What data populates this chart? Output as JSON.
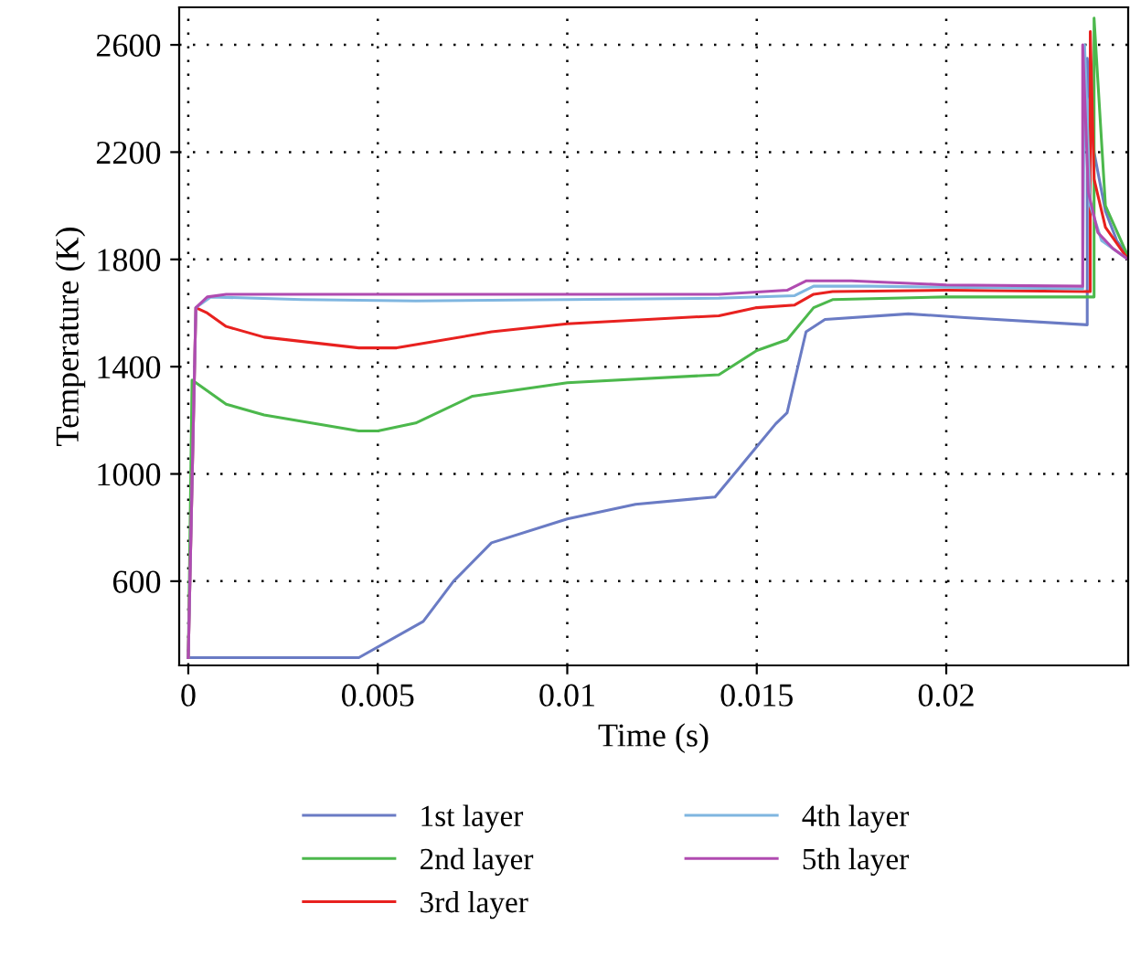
{
  "chart_data": {
    "type": "line",
    "xlabel": "Time (s)",
    "ylabel": "Temperature (K)",
    "xlim": [
      -0.00024,
      0.0248
    ],
    "ylim": [
      286,
      2740
    ],
    "xticks": [
      0,
      0.005,
      0.01,
      0.015,
      0.02
    ],
    "yticks": [
      600,
      1000,
      1400,
      1800,
      2200,
      2600
    ],
    "grid": true,
    "legend": "bottom",
    "marker": "none",
    "line_style": "solid",
    "series": [
      {
        "name": "1st layer",
        "color": "#6a7bc4",
        "x": [
          0,
          0.0001,
          0.0045,
          0.0062,
          0.007,
          0.008,
          0.01,
          0.0118,
          0.0139,
          0.0147,
          0.0155,
          0.0158,
          0.0163,
          0.0168,
          0.019,
          0.0205,
          0.02372,
          0.02372,
          0.0239,
          0.0242,
          0.0245,
          0.0248
        ],
        "values": [
          315,
          315,
          315,
          450,
          600,
          743,
          832,
          887,
          914,
          1050,
          1187,
          1228,
          1530,
          1576,
          1597,
          1583,
          1556,
          2550,
          2200,
          1980,
          1870,
          1810
        ]
      },
      {
        "name": "2nd layer",
        "color": "#4cb84c",
        "x": [
          0,
          0.0001,
          0.001,
          0.002,
          0.0045,
          0.005,
          0.006,
          0.0075,
          0.01,
          0.014,
          0.015,
          0.0158,
          0.0165,
          0.017,
          0.02,
          0.0239,
          0.0239,
          0.0242,
          0.0248
        ],
        "values": [
          315,
          1350,
          1260,
          1220,
          1160,
          1160,
          1190,
          1290,
          1340,
          1370,
          1460,
          1500,
          1620,
          1650,
          1660,
          1660,
          2700,
          2000,
          1810
        ]
      },
      {
        "name": "3rd layer",
        "color": "#e8211f",
        "x": [
          0,
          0.0002,
          0.0005,
          0.001,
          0.002,
          0.0045,
          0.0055,
          0.008,
          0.01,
          0.014,
          0.015,
          0.016,
          0.0165,
          0.017,
          0.02,
          0.0238,
          0.0238,
          0.0239,
          0.0242,
          0.0248
        ],
        "values": [
          315,
          1620,
          1600,
          1550,
          1510,
          1470,
          1470,
          1530,
          1560,
          1590,
          1620,
          1630,
          1670,
          1680,
          1685,
          1680,
          2650,
          2100,
          1920,
          1800
        ]
      },
      {
        "name": "4th layer",
        "color": "#7fb6e0",
        "x": [
          0,
          0.0002,
          0.0006,
          0.003,
          0.006,
          0.014,
          0.016,
          0.0165,
          0.018,
          0.0236,
          0.02365,
          0.0238,
          0.0241,
          0.0248
        ],
        "values": [
          315,
          1620,
          1660,
          1650,
          1645,
          1655,
          1665,
          1700,
          1700,
          1690,
          2600,
          2000,
          1870,
          1800
        ]
      },
      {
        "name": "5th layer",
        "color": "#b04bb0",
        "x": [
          0,
          0.0002,
          0.0005,
          0.001,
          0.014,
          0.0158,
          0.0163,
          0.0175,
          0.02,
          0.0236,
          0.0236,
          0.02375,
          0.024,
          0.0244,
          0.0248
        ],
        "values": [
          315,
          1620,
          1660,
          1670,
          1670,
          1685,
          1720,
          1720,
          1705,
          1700,
          2600,
          2050,
          1900,
          1840,
          1800
        ]
      }
    ]
  }
}
